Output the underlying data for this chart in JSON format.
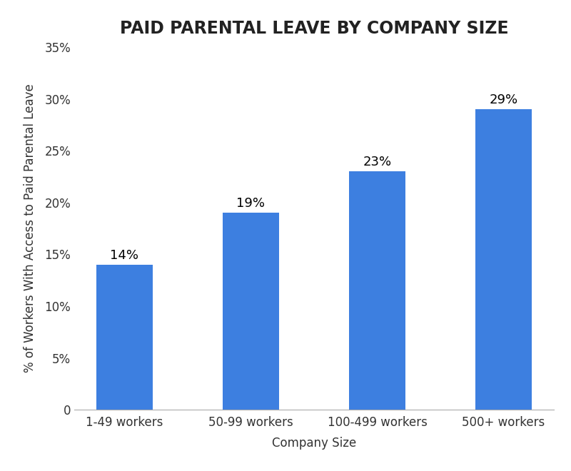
{
  "title": "PAID PARENTAL LEAVE BY COMPANY SIZE",
  "categories": [
    "1-49 workers",
    "50-99 workers",
    "100-499 workers",
    "500+ workers"
  ],
  "values": [
    14,
    19,
    23,
    29
  ],
  "bar_color": "#3d7fe0",
  "xlabel": "Company Size",
  "ylabel": "% of Workers With Access to Paid Parental Leave",
  "ylim": [
    0,
    35
  ],
  "yticks": [
    0,
    5,
    10,
    15,
    20,
    25,
    30,
    35
  ],
  "ytick_labels": [
    "0",
    "5%",
    "10%",
    "15%",
    "20%",
    "25%",
    "30%",
    "35%"
  ],
  "title_fontsize": 17,
  "label_fontsize": 12,
  "tick_fontsize": 12,
  "annotation_fontsize": 13,
  "bar_width": 0.45,
  "background_color": "#ffffff"
}
